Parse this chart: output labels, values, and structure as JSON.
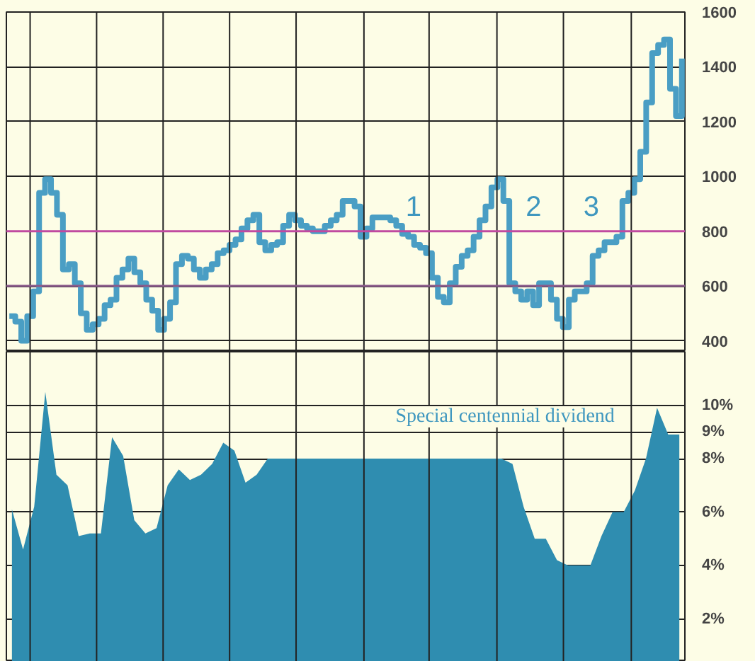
{
  "chart_data": [
    {
      "type": "step",
      "annotations": [
        "1",
        "2",
        "3"
      ],
      "categories": [
        null,
        null,
        null,
        null,
        null,
        null,
        null,
        null,
        null,
        null,
        null,
        null,
        null,
        null,
        null,
        null,
        null,
        null,
        null,
        null,
        null,
        null,
        null,
        null,
        null,
        null,
        null,
        null,
        null,
        null,
        null,
        null,
        null,
        null,
        null,
        null,
        null,
        null,
        null,
        null,
        null,
        null,
        null,
        null,
        null,
        null,
        null,
        null,
        null,
        null,
        null,
        null,
        null,
        null,
        null,
        null,
        null,
        null,
        null,
        null,
        null,
        null,
        null,
        null,
        null,
        null,
        null,
        null,
        null,
        null,
        null,
        null,
        null,
        null,
        null,
        null,
        null,
        null,
        null,
        null,
        null,
        null,
        null,
        null,
        null,
        null,
        null,
        null,
        null,
        null,
        null,
        null,
        null,
        null,
        null,
        null,
        null,
        null,
        null,
        null,
        null,
        null,
        null,
        null,
        null,
        null,
        null,
        null,
        null,
        null,
        null,
        null,
        null,
        null
      ],
      "ylim": [
        360,
        1600
      ],
      "yticks": [
        400,
        600,
        800,
        1000,
        1200,
        1400,
        1600
      ],
      "grid": true,
      "tick_labels": "y",
      "ref_lines": [
        {
          "axis": "y",
          "value": 800,
          "color": "#c04aa0"
        },
        {
          "axis": "y",
          "value": 600,
          "color": "#8a5a8a"
        }
      ],
      "series": [
        {
          "color": "#4a9ec4",
          "values": [
            490,
            470,
            400,
            490,
            580,
            940,
            990,
            940,
            860,
            660,
            680,
            610,
            500,
            440,
            460,
            480,
            530,
            550,
            630,
            660,
            700,
            650,
            610,
            550,
            510,
            440,
            480,
            540,
            680,
            710,
            700,
            660,
            630,
            660,
            680,
            720,
            730,
            750,
            770,
            810,
            840,
            860,
            760,
            730,
            750,
            760,
            820,
            860,
            840,
            820,
            810,
            800,
            800,
            820,
            840,
            860,
            910,
            910,
            890,
            780,
            810,
            850,
            850,
            850,
            840,
            820,
            790,
            780,
            750,
            740,
            720,
            630,
            560,
            540,
            610,
            670,
            710,
            730,
            780,
            840,
            890,
            960,
            990,
            910,
            610,
            580,
            550,
            580,
            530,
            610,
            610,
            550,
            480,
            450,
            550,
            580,
            580,
            610,
            710,
            730,
            760,
            760,
            780,
            910,
            940,
            990,
            1090,
            1270,
            1450,
            1480,
            1500,
            1320,
            1220,
            1430
          ]
        }
      ]
    },
    {
      "type": "area",
      "annotations": [
        "Special centennial dividend"
      ],
      "categories": [
        null,
        null,
        null,
        null,
        null,
        null,
        null,
        null,
        null,
        null,
        null,
        null,
        null,
        null,
        null,
        null,
        null,
        null,
        null,
        null,
        null,
        null,
        null,
        null,
        null,
        null,
        null,
        null,
        null,
        null,
        null,
        null,
        null,
        null,
        null,
        null,
        null,
        null,
        null,
        null,
        null,
        null,
        null,
        null,
        null,
        null,
        null,
        null,
        null,
        null,
        null,
        null,
        null,
        null,
        null,
        null,
        null,
        null,
        null,
        null,
        null
      ],
      "ylim": [
        0.4,
        12
      ],
      "yticks": [
        {
          "value": 2,
          "label": "2%"
        },
        {
          "value": 4,
          "label": "4%"
        },
        {
          "value": 6,
          "label": "6%"
        },
        {
          "value": 8,
          "label": "8%"
        },
        {
          "value": 9,
          "label": "9%"
        },
        {
          "value": 10,
          "label": "10%"
        }
      ],
      "grid": true,
      "tick_labels": "y",
      "series": [
        {
          "color": "#2f8db0",
          "values": [
            6.1,
            4.6,
            6.2,
            10.5,
            7.4,
            7.0,
            5.1,
            5.2,
            5.2,
            8.8,
            8.1,
            5.7,
            5.2,
            5.4,
            7.0,
            7.6,
            7.2,
            7.4,
            7.8,
            8.6,
            8.3,
            7.1,
            7.4,
            8,
            8,
            8,
            8,
            8,
            8,
            8,
            8,
            8,
            8,
            8,
            8,
            8,
            8,
            8,
            8,
            8,
            8,
            8,
            8,
            8,
            8,
            7.8,
            6.2,
            5,
            5,
            4.2,
            4,
            4,
            4,
            5.1,
            6,
            6,
            6.8,
            8,
            9.9,
            8.9,
            8.9
          ]
        }
      ]
    }
  ]
}
